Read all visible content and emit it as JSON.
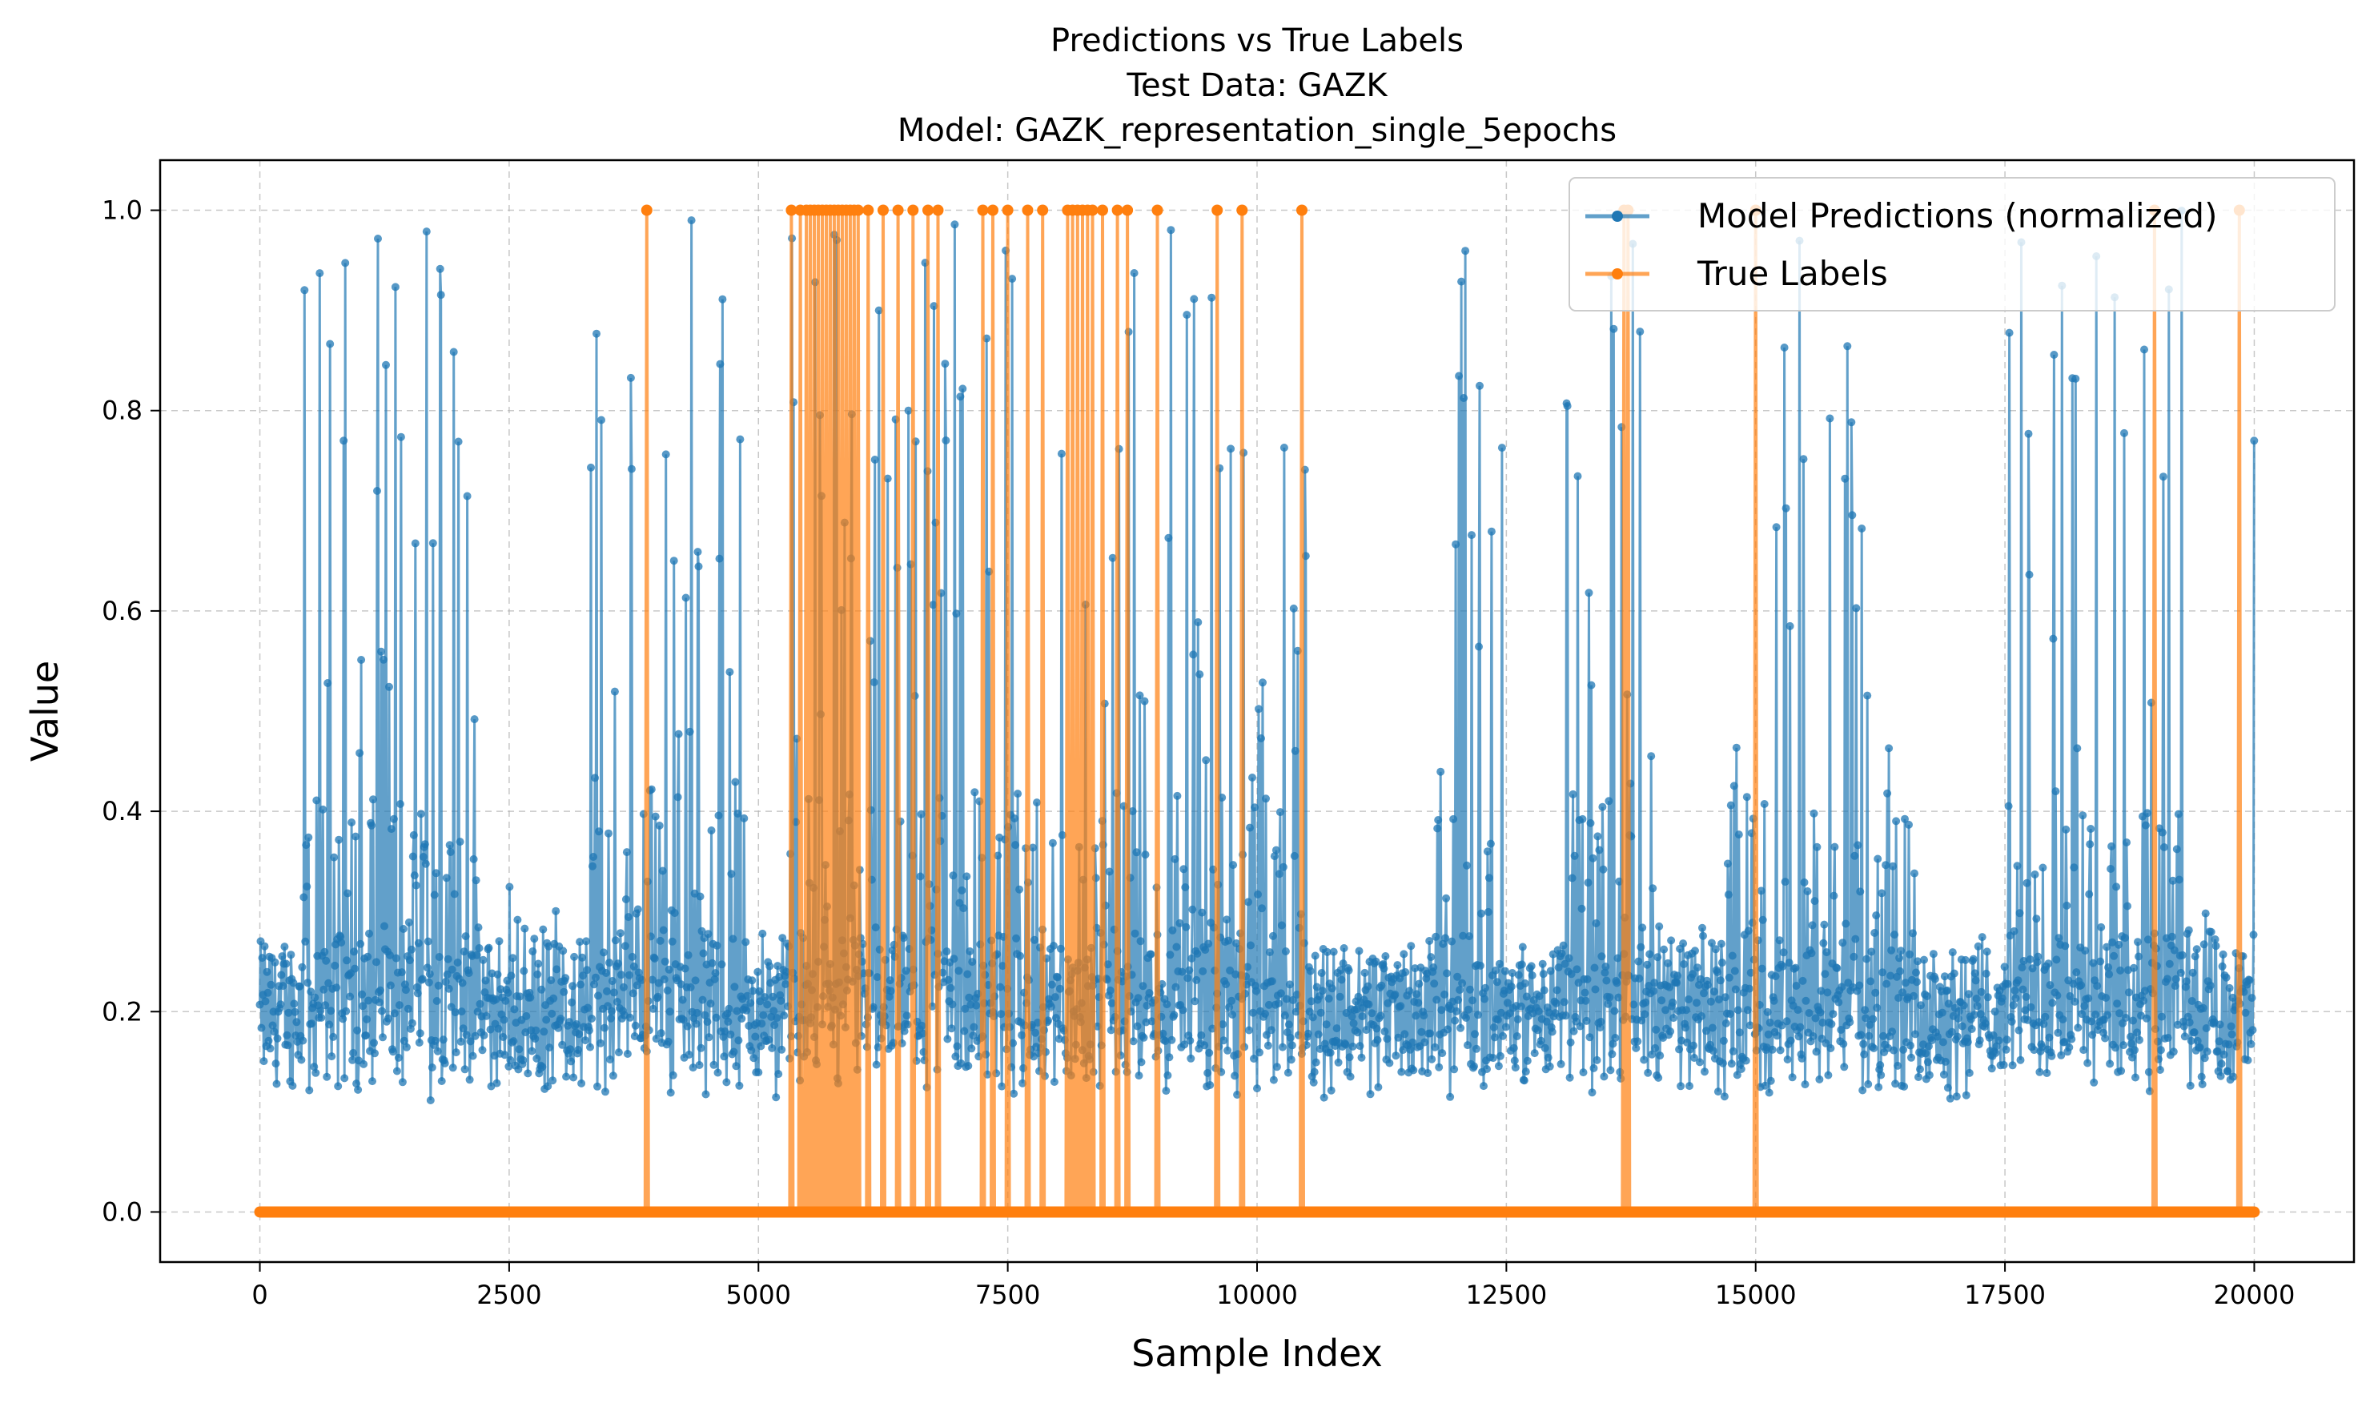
{
  "chart_data": {
    "type": "line",
    "title_lines": [
      "Predictions vs True Labels",
      "Test Data: GAZK",
      "Model: GAZK_representation_single_5epochs"
    ],
    "xlabel": "Sample Index",
    "ylabel": "Value",
    "xlim": [
      -1000,
      21000
    ],
    "ylim": [
      -0.05,
      1.05
    ],
    "x_ticks": [
      0,
      2500,
      5000,
      7500,
      10000,
      12500,
      15000,
      17500,
      20000
    ],
    "y_ticks": [
      0.0,
      0.2,
      0.4,
      0.6,
      0.8,
      1.0
    ],
    "x_tick_labels": [
      "0",
      "2500",
      "5000",
      "7500",
      "10000",
      "12500",
      "15000",
      "17500",
      "20000"
    ],
    "y_tick_labels": [
      "0.0",
      "0.2",
      "0.4",
      "0.6",
      "0.8",
      "1.0"
    ],
    "grid": true,
    "legend_position": "upper right",
    "n_samples": 20000,
    "series": [
      {
        "name": "Model Predictions (normalized)",
        "color": "#1f77b4",
        "marker": "circle",
        "baseline": 0.2,
        "noise_band": [
          0.11,
          0.3
        ],
        "high_activity_ranges": [
          [
            300,
            2200
          ],
          [
            3300,
            4900
          ],
          [
            5300,
            10500
          ],
          [
            11800,
            12500
          ],
          [
            13100,
            14000
          ],
          [
            14700,
            16700
          ],
          [
            17500,
            19300
          ]
        ],
        "max_value": 1.0,
        "last_value": 0.77
      },
      {
        "name": "True Labels",
        "color": "#ff7f0e",
        "marker": "circle",
        "values_description_free": true,
        "positive_indices": [
          3880,
          5330,
          5420,
          5480,
          5520,
          5560,
          5600,
          5640,
          5680,
          5720,
          5760,
          5800,
          5840,
          5880,
          5920,
          5960,
          6000,
          6100,
          6250,
          6400,
          6550,
          6700,
          6800,
          7250,
          7350,
          7500,
          7700,
          7850,
          8100,
          8150,
          8200,
          8250,
          8300,
          8350,
          8450,
          8600,
          8700,
          9000,
          9600,
          9850,
          10450,
          13680,
          13720,
          15000,
          19000,
          19850
        ]
      }
    ]
  }
}
